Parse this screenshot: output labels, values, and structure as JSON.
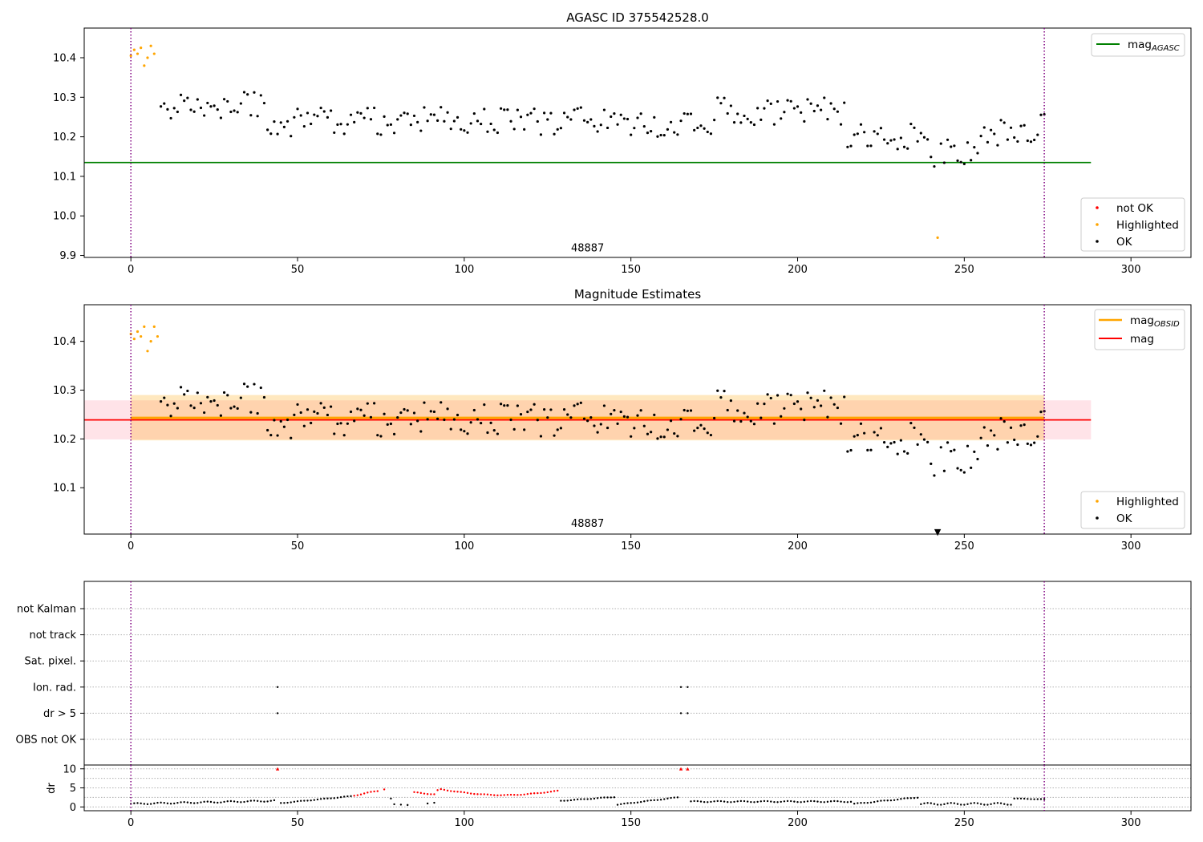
{
  "chart_data": [
    {
      "type": "scatter",
      "title": "AGASC ID 375542528.0",
      "xlim": [
        -14,
        318
      ],
      "ylim": [
        9.895,
        10.475
      ],
      "xticks": [
        0,
        50,
        100,
        150,
        200,
        250,
        300
      ],
      "yticks": [
        9.9,
        10.0,
        10.1,
        10.2,
        10.3,
        10.4
      ],
      "annotation": {
        "text": "48887",
        "x": 137,
        "y": 9.91
      },
      "vlines": [
        0,
        274
      ],
      "mag_agasc": {
        "label": "mag",
        "subscript": "AGASC",
        "value": 10.135,
        "x_range": [
          -14,
          288
        ],
        "color": "#008000"
      },
      "legend_lines_placement": "top-right",
      "legend_points_placement": "bottom-right",
      "legend_points": [
        {
          "label": "not OK",
          "color": "#ff0000"
        },
        {
          "label": "Highlighted",
          "color": "#ffa500"
        },
        {
          "label": "OK",
          "color": "#000000"
        }
      ],
      "highlighted_points": [
        [
          0,
          10.405
        ],
        [
          1,
          10.42
        ],
        [
          2,
          10.41
        ],
        [
          3,
          10.425
        ],
        [
          4,
          10.38
        ],
        [
          5,
          10.4
        ],
        [
          6,
          10.43
        ],
        [
          7,
          10.41
        ],
        [
          242,
          9.945
        ]
      ]
    },
    {
      "type": "scatter",
      "title": "Magnitude Estimates",
      "xlim": [
        -14,
        318
      ],
      "ylim": [
        10.005,
        10.475
      ],
      "xticks": [
        0,
        50,
        100,
        150,
        200,
        250,
        300
      ],
      "yticks": [
        10.1,
        10.2,
        10.3,
        10.4
      ],
      "annotation": {
        "text": "48887",
        "x": 137,
        "y": 10.02
      },
      "vlines": [
        0,
        274
      ],
      "mag": {
        "label": "mag",
        "value": 10.239,
        "x_range": [
          -14,
          288
        ],
        "band": [
          10.199,
          10.279
        ],
        "color": "#ff0000",
        "band_color": "#ffc0cb"
      },
      "mag_obsid": {
        "label": "mag",
        "subscript": "OBSID",
        "value": 10.243,
        "x_range": [
          0,
          274
        ],
        "band": [
          10.197,
          10.29
        ],
        "color": "#ffa500"
      },
      "legend_lines_placement": "top-right",
      "legend_points_placement": "bottom-right",
      "legend_points": [
        {
          "label": "Highlighted",
          "color": "#ffa500"
        },
        {
          "label": "OK",
          "color": "#000000"
        }
      ],
      "highlighted_points": [
        [
          0,
          10.415
        ],
        [
          1,
          10.405
        ],
        [
          2,
          10.42
        ],
        [
          3,
          10.41
        ],
        [
          4,
          10.43
        ],
        [
          5,
          10.38
        ],
        [
          6,
          10.4
        ],
        [
          7,
          10.43
        ],
        [
          8,
          10.41
        ]
      ],
      "offscale_marker": {
        "x": 242,
        "symbol": "▼"
      }
    },
    {
      "type": "scatter",
      "title": "",
      "xlim": [
        -14,
        318
      ],
      "vlines": [
        0,
        274
      ],
      "flag_rows": [
        "not Kalman",
        "not track",
        "Sat. pixel.",
        "Ion. rad.",
        "dr > 5",
        "OBS not OK"
      ],
      "flag_points": [
        {
          "row": "Ion. rad.",
          "x": [
            44,
            165,
            167
          ]
        },
        {
          "row": "dr > 5",
          "x": [
            44,
            165,
            167
          ]
        }
      ]
    },
    {
      "type": "scatter",
      "title": "",
      "ylabel": "dr",
      "xlim": [
        -14,
        318
      ],
      "ylim": [
        -1,
        11
      ],
      "xticks": [
        0,
        50,
        100,
        150,
        200,
        250,
        300
      ],
      "yticks": [
        0,
        5,
        10
      ],
      "vlines": [
        0,
        274
      ],
      "dr_series": [
        {
          "x_range": [
            0,
            43
          ],
          "start": 0.8,
          "end": 1.6,
          "color": "#000000",
          "wobble": 0.35
        },
        {
          "x_range": [
            45,
            66
          ],
          "start": 1.0,
          "end": 2.8,
          "color": "#000000",
          "wobble": 0.15
        },
        {
          "x_range": [
            67,
            74
          ],
          "start": 3.0,
          "end": 4.2,
          "color": "#ff0000",
          "wobble": 0.2
        },
        {
          "x_range": [
            85,
            91
          ],
          "start": 3.8,
          "end": 3.3,
          "color": "#ff0000",
          "wobble": 0.2
        },
        {
          "x_range": [
            93,
            128
          ],
          "start": 4.6,
          "end": 4.2,
          "color": "#ff0000",
          "wobble": 0.15,
          "dip": 1.3
        },
        {
          "x_range": [
            129,
            145
          ],
          "start": 1.6,
          "end": 2.6,
          "color": "#000000",
          "wobble": 0.15
        },
        {
          "x_range": [
            146,
            164
          ],
          "start": 0.6,
          "end": 2.5,
          "color": "#000000",
          "wobble": 0.15
        },
        {
          "x_range": [
            168,
            216
          ],
          "start": 1.4,
          "end": 1.4,
          "color": "#000000",
          "wobble": 0.3
        },
        {
          "x_range": [
            217,
            236
          ],
          "start": 0.8,
          "end": 2.5,
          "color": "#000000",
          "wobble": 0.2
        },
        {
          "x_range": [
            237,
            264
          ],
          "start": 0.8,
          "end": 0.8,
          "color": "#000000",
          "wobble": 0.5
        },
        {
          "x_range": [
            265,
            274
          ],
          "start": 2.2,
          "end": 2.0,
          "color": "#000000",
          "wobble": 0.1
        }
      ],
      "dr_points": [
        [
          44,
          10,
          "#ff0000"
        ],
        [
          165,
          10,
          "#ff0000"
        ],
        [
          167,
          10,
          "#ff0000"
        ],
        [
          76,
          4.6,
          "#ff0000"
        ],
        [
          78,
          2.2,
          "#000000"
        ],
        [
          79,
          0.7,
          "#000000"
        ],
        [
          81,
          0.6,
          "#000000"
        ],
        [
          83,
          0.5,
          "#000000"
        ],
        [
          92,
          4.4,
          "#ff0000"
        ],
        [
          89,
          0.9,
          "#000000"
        ],
        [
          91,
          1.1,
          "#000000"
        ]
      ]
    }
  ]
}
